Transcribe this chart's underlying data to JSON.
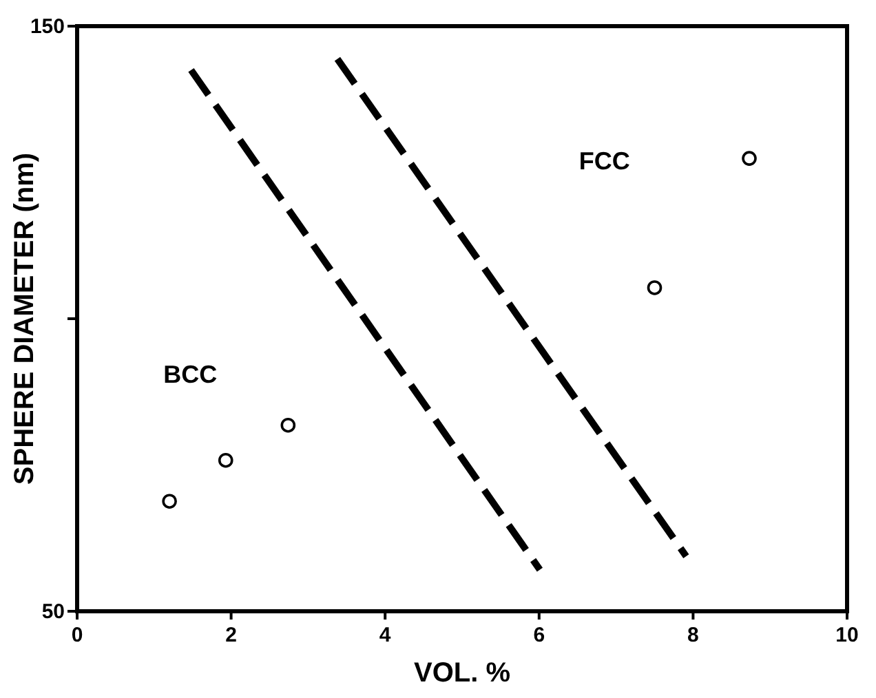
{
  "chart_data": {
    "type": "scatter",
    "xlabel": "VOL. %",
    "ylabel": "SPHERE DIAMETER (nm)",
    "xlim": [
      0,
      10
    ],
    "ylim": [
      50,
      150
    ],
    "xticks": [
      0,
      2,
      4,
      6,
      8,
      10
    ],
    "yticks": [
      50,
      {
        "value": 100,
        "label": null
      },
      150
    ],
    "grid": false,
    "marker": "circle",
    "series": [
      {
        "color": "#000000",
        "x": [
          1.2,
          1.93,
          2.74
        ],
        "values": [
          68.8,
          75.8,
          81.8
        ]
      },
      {
        "color": "#000000",
        "x": [
          7.5,
          8.73
        ],
        "values": [
          105.3,
          127.4
        ]
      },
      {
        "type": "line",
        "color": "#000000",
        "line_style": "dashed",
        "marker": "none",
        "x": [
          1.48,
          6.01
        ],
        "values": [
          142.5,
          57.1
        ]
      },
      {
        "type": "line",
        "color": "#000000",
        "line_style": "dashed",
        "marker": "none",
        "x": [
          3.38,
          7.91
        ],
        "values": [
          144.4,
          59.4
        ]
      }
    ],
    "annotations": [
      "BCC",
      "FCC"
    ]
  }
}
